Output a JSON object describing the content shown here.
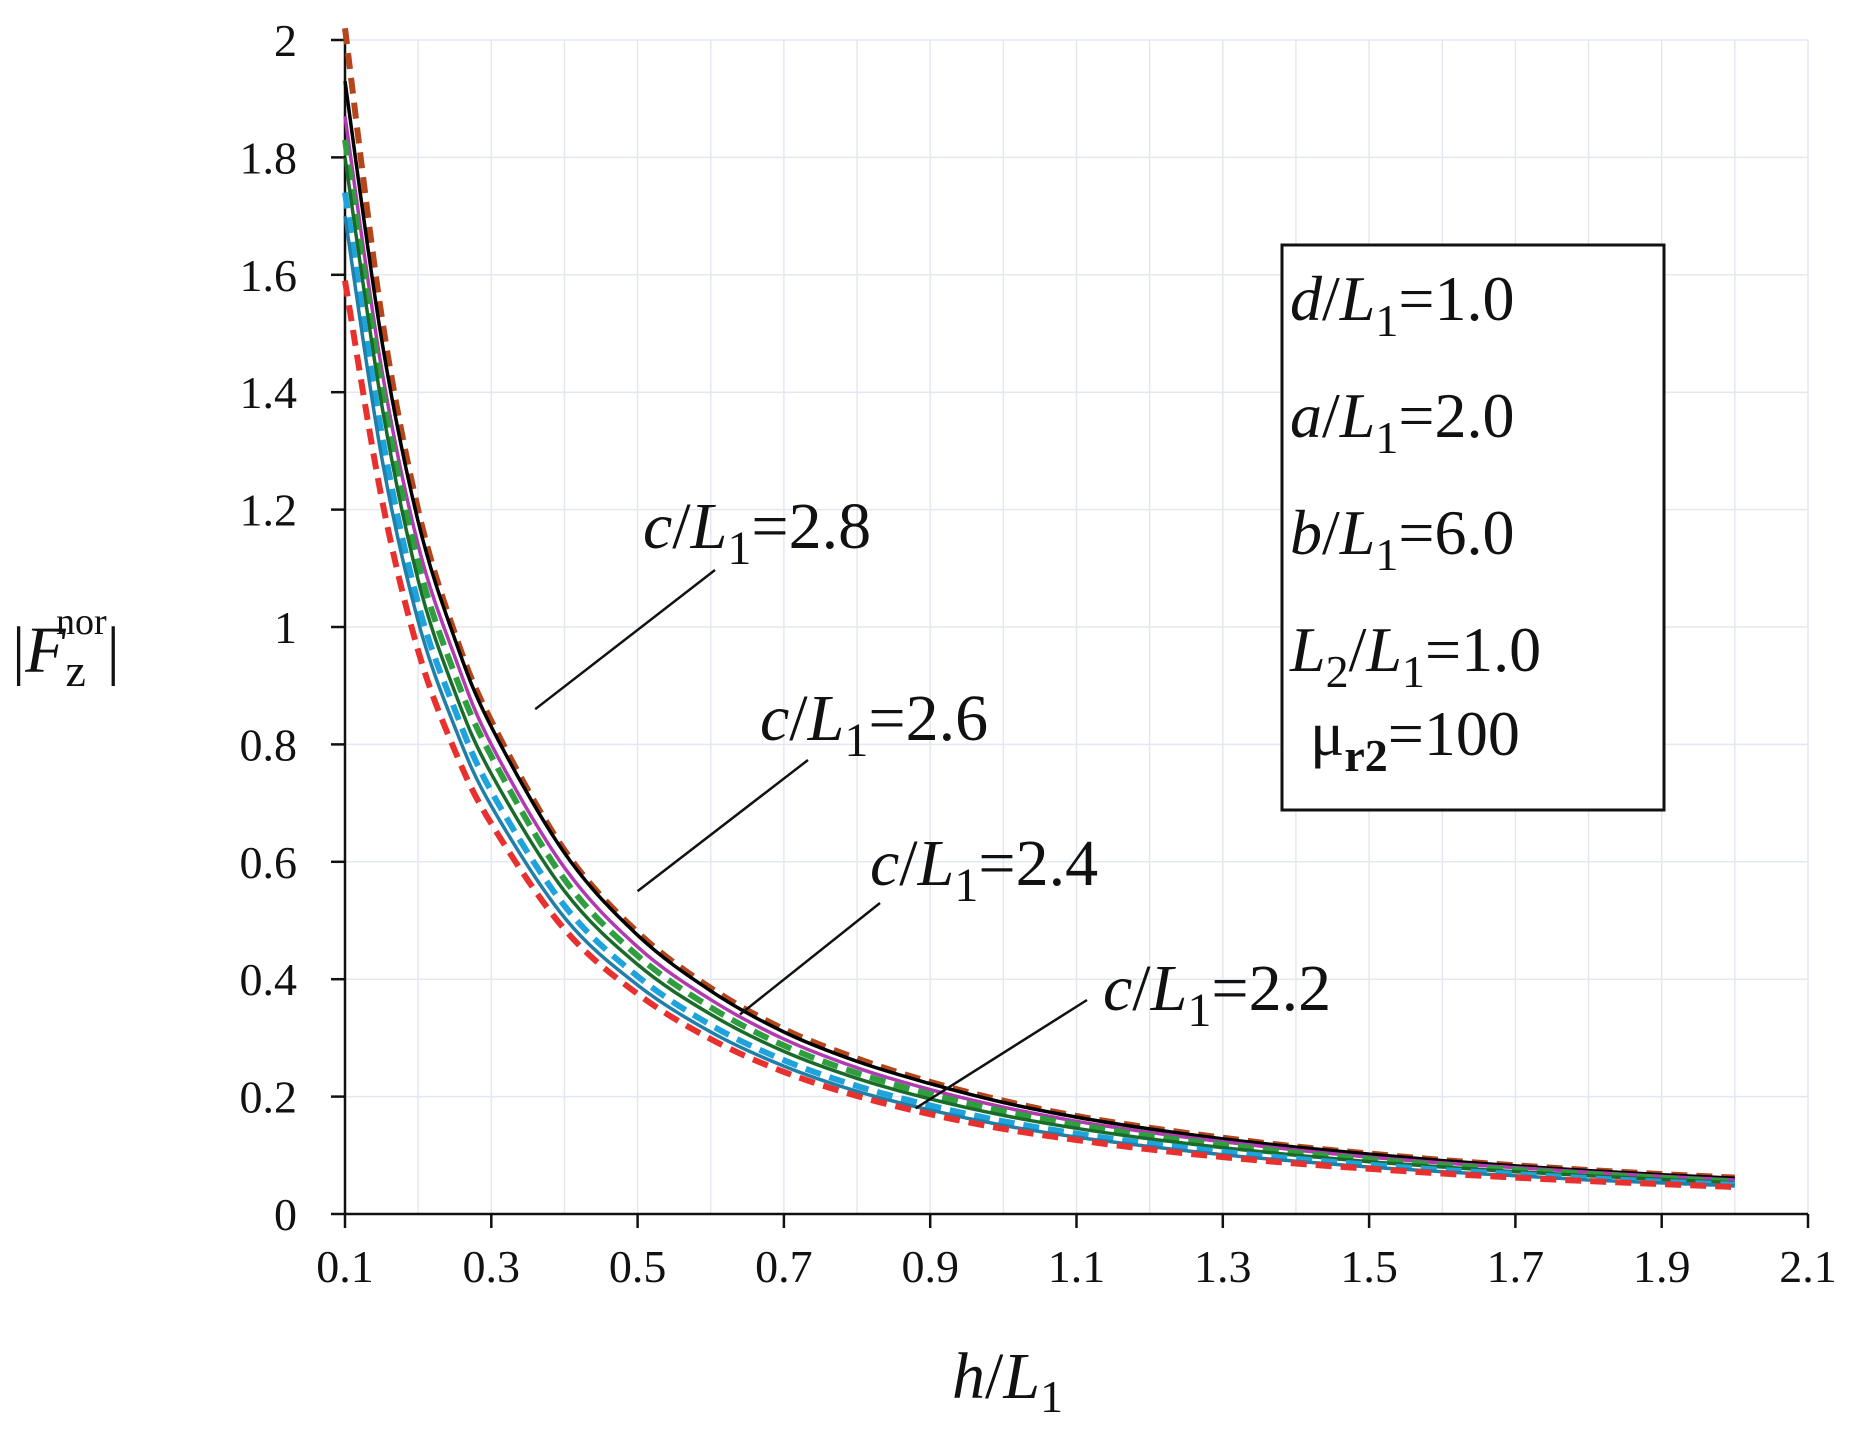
{
  "chart_data": {
    "type": "line",
    "xlabel": {
      "var": "h",
      "slash": "/",
      "base": "L",
      "sub": "1"
    },
    "ylabel": {
      "open": "|",
      "base": "F",
      "sub": "z",
      "sup": "nor",
      "close": "|"
    },
    "xlim": [
      0.1,
      2.1
    ],
    "ylim": [
      0,
      2
    ],
    "xticks": [
      "0.1",
      "0.3",
      "0.5",
      "0.7",
      "0.9",
      "1.1",
      "1.3",
      "1.5",
      "1.7",
      "1.9",
      "2.1"
    ],
    "yticks": [
      "0",
      "0.2",
      "0.4",
      "0.6",
      "0.8",
      "1",
      "1.2",
      "1.4",
      "1.6",
      "1.8",
      "2"
    ],
    "grid": true,
    "x": [
      0.1,
      0.15,
      0.2,
      0.25,
      0.3,
      0.4,
      0.5,
      0.6,
      0.7,
      0.8,
      0.9,
      1.0,
      1.1,
      1.2,
      1.3,
      1.4,
      1.5,
      1.6,
      1.7,
      1.8,
      1.9,
      2.0
    ],
    "series": [
      {
        "name": "c/L1=2.8 (dashed)",
        "color": "#b5451b",
        "dash": true,
        "values": [
          2.02,
          1.53,
          1.2,
          0.99,
          0.84,
          0.62,
          0.48,
          0.385,
          0.315,
          0.265,
          0.225,
          0.193,
          0.167,
          0.147,
          0.13,
          0.115,
          0.103,
          0.092,
          0.083,
          0.075,
          0.068,
          0.062
        ]
      },
      {
        "name": "c/L1=2.8 (solid)",
        "color": "#000000",
        "dash": false,
        "values": [
          1.93,
          1.49,
          1.18,
          0.98,
          0.83,
          0.615,
          0.475,
          0.38,
          0.31,
          0.26,
          0.222,
          0.19,
          0.165,
          0.145,
          0.128,
          0.114,
          0.102,
          0.091,
          0.082,
          0.074,
          0.067,
          0.061
        ]
      },
      {
        "name": "c/L1=2.6 (solid)",
        "color": "#b23ab0",
        "dash": false,
        "values": [
          1.87,
          1.44,
          1.14,
          0.95,
          0.8,
          0.59,
          0.455,
          0.365,
          0.298,
          0.249,
          0.212,
          0.182,
          0.158,
          0.139,
          0.123,
          0.109,
          0.097,
          0.087,
          0.079,
          0.071,
          0.064,
          0.058
        ]
      },
      {
        "name": "c/L1=2.6 (dashed)",
        "color": "#2e9e3e",
        "dash": true,
        "values": [
          1.83,
          1.41,
          1.11,
          0.92,
          0.78,
          0.57,
          0.44,
          0.352,
          0.287,
          0.24,
          0.204,
          0.175,
          0.152,
          0.133,
          0.118,
          0.104,
          0.093,
          0.083,
          0.075,
          0.068,
          0.061,
          0.055
        ]
      },
      {
        "name": "c/L1=2.4 (solid)",
        "color": "#1a6b2a",
        "dash": false,
        "values": [
          1.8,
          1.38,
          1.08,
          0.89,
          0.75,
          0.55,
          0.425,
          0.34,
          0.277,
          0.231,
          0.196,
          0.168,
          0.146,
          0.128,
          0.113,
          0.1,
          0.089,
          0.08,
          0.072,
          0.065,
          0.059,
          0.053
        ]
      },
      {
        "name": "c/L1=2.4 (dashed)",
        "color": "#1fa3dc",
        "dash": true,
        "values": [
          1.74,
          1.33,
          1.04,
          0.86,
          0.72,
          0.525,
          0.405,
          0.322,
          0.262,
          0.218,
          0.185,
          0.158,
          0.137,
          0.12,
          0.106,
          0.094,
          0.084,
          0.075,
          0.068,
          0.061,
          0.055,
          0.05
        ]
      },
      {
        "name": "c/L1=2.2 (solid)",
        "color": "#1f7fa8",
        "dash": false,
        "values": [
          1.7,
          1.29,
          1.01,
          0.83,
          0.695,
          0.505,
          0.39,
          0.31,
          0.252,
          0.209,
          0.177,
          0.151,
          0.131,
          0.115,
          0.101,
          0.09,
          0.08,
          0.072,
          0.065,
          0.058,
          0.053,
          0.048
        ]
      },
      {
        "name": "c/L1=2.2 (dashed)",
        "color": "#e8312f",
        "dash": true,
        "values": [
          1.59,
          1.22,
          0.96,
          0.79,
          0.665,
          0.485,
          0.375,
          0.298,
          0.242,
          0.201,
          0.17,
          0.145,
          0.126,
          0.11,
          0.097,
          0.086,
          0.077,
          0.069,
          0.062,
          0.056,
          0.051,
          0.046
        ]
      }
    ],
    "annotations": [
      {
        "var": "c",
        "slash": "/",
        "base": "L",
        "sub": "1",
        "eq": "=",
        "val": "2.8",
        "target_x": 0.36,
        "target_y": 0.86
      },
      {
        "var": "c",
        "slash": "/",
        "base": "L",
        "sub": "1",
        "eq": "=",
        "val": "2.6",
        "target_x": 0.5,
        "target_y": 0.55
      },
      {
        "var": "c",
        "slash": "/",
        "base": "L",
        "sub": "1",
        "eq": "=",
        "val": "2.4",
        "target_x": 0.64,
        "target_y": 0.34
      },
      {
        "var": "c",
        "slash": "/",
        "base": "L",
        "sub": "1",
        "eq": "=",
        "val": "2.2",
        "target_x": 0.88,
        "target_y": 0.18
      }
    ],
    "parameters": [
      {
        "var": "d",
        "slash": "/",
        "base": "L",
        "sub": "1",
        "eq": "=",
        "val": "1.0"
      },
      {
        "var": "a",
        "slash": "/",
        "base": "L",
        "sub": "1",
        "eq": "=",
        "val": "2.0"
      },
      {
        "var": "b",
        "slash": "/",
        "base": "L",
        "sub": "1",
        "eq": "=",
        "val": "6.0"
      },
      {
        "var": "L",
        "sub1": "2",
        "slash": "/",
        "base": "L",
        "sub": "1",
        "eq": "=",
        "val": "1.0"
      },
      {
        "var": "μ",
        "sub": "r2",
        "eq": "=",
        "val": "100"
      }
    ]
  }
}
